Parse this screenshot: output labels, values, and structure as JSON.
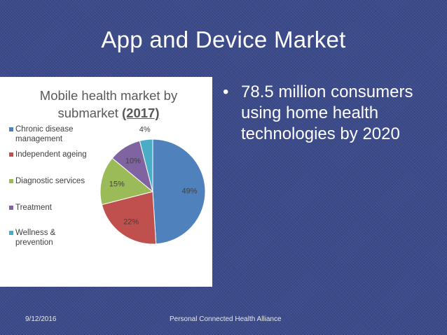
{
  "slide": {
    "title": "App and Device Market",
    "bullet": "78.5 million consumers using home health technologies by 2020",
    "footer_date": "9/12/2016",
    "footer_org": "Personal Connected Health Alliance"
  },
  "colors": {
    "background": "#3b4a8a",
    "chronic": "#4f81bd",
    "ageing": "#c0504d",
    "diagnostic": "#9bbb59",
    "treatment": "#8064a2",
    "wellness": "#4bacc6"
  },
  "chart_data": {
    "type": "pie",
    "title": "Mobile health market by submarket",
    "title_year": "(2017)",
    "categories": [
      "Chronic disease management",
      "Independent ageing",
      "Diagnostic services",
      "Treatment",
      "Wellness & prevention"
    ],
    "legend_lines": [
      [
        "Chronic disease",
        "management"
      ],
      [
        "Independent ageing"
      ],
      [
        "Diagnostic services"
      ],
      [
        "Treatment"
      ],
      [
        "Wellness &",
        "prevention"
      ]
    ],
    "values": [
      49,
      22,
      15,
      10,
      4
    ],
    "data_labels": [
      "49%",
      "22%",
      "15%",
      "10%",
      "4%"
    ],
    "colors": [
      "#4f81bd",
      "#c0504d",
      "#9bbb59",
      "#8064a2",
      "#4bacc6"
    ],
    "legend_position": "left"
  }
}
